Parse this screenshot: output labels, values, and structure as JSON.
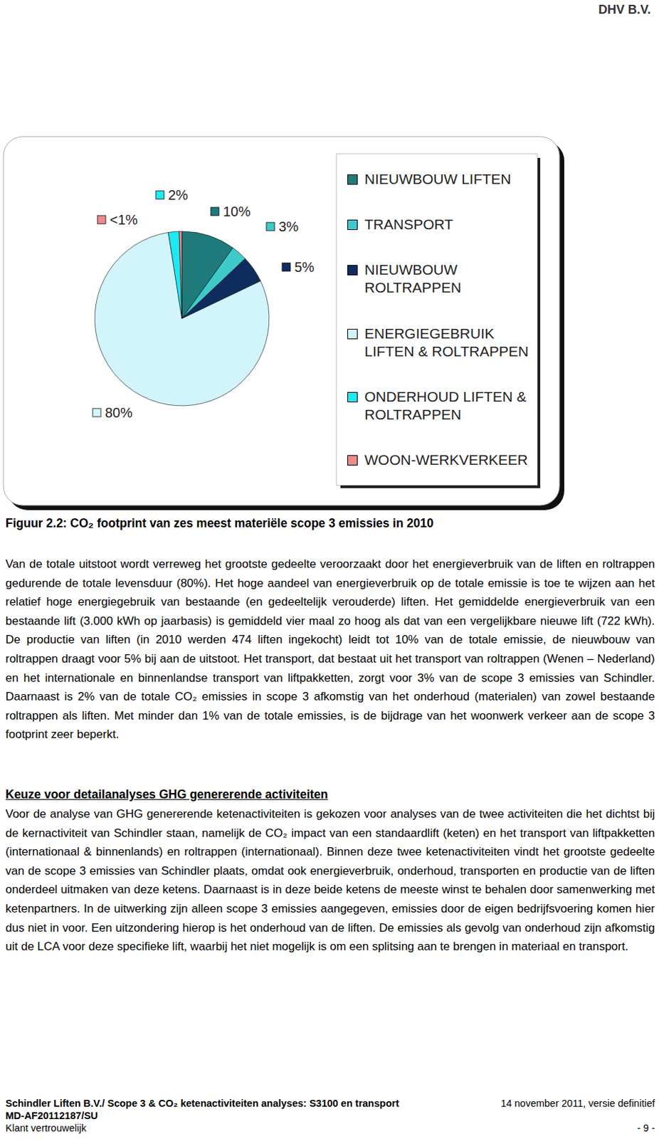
{
  "header": "DHV B.V.",
  "chart_data": {
    "type": "pie",
    "categories": [
      "NIEUWBOUW LIFTEN",
      "TRANSPORT",
      "NIEUWBOUW ROLTRAPPEN",
      "ENERGIEGEBRUIK LIFTEN & ROLTRAPPEN",
      "ONDERHOUD LIFTEN & ROLTRAPPEN",
      "WOON-WERKVERKEER"
    ],
    "values": [
      10,
      3,
      5,
      80,
      2,
      0.5
    ],
    "value_labels": [
      "10%",
      "3%",
      "5%",
      "80%",
      "2%",
      "<1%"
    ],
    "colors": [
      "#1f7b7b",
      "#3fcaca",
      "#0e2d5e",
      "#d2f4fb",
      "#1ee9f2",
      "#ec8b8b"
    ],
    "data_labels": true,
    "legend": "right"
  },
  "caption": "Figuur 2.2: CO₂ footprint van zes meest materiële scope 3 emissies in 2010",
  "paragraph_1": "Van de totale uitstoot wordt verreweg het grootste gedeelte veroorzaakt door het energieverbruik van de liften en roltrappen gedurende de totale levensduur (80%). Het hoge aandeel van energieverbruik op de totale emissie is toe te wijzen aan het relatief hoge energiegebruik van bestaande (en gedeeltelijk verouderde) liften. Het gemiddelde energieverbruik van een bestaande lift (3.000 kWh op jaarbasis) is gemiddeld vier maal zo hoog als dat van een vergelijkbare nieuwe lift (722 kWh). De productie van liften (in 2010 werden 474 liften ingekocht) leidt tot 10% van de totale emissie, de nieuwbouw van roltrappen draagt voor 5% bij aan de uitstoot. Het transport, dat bestaat uit het transport van roltrappen (Wenen – Nederland) en het internationale en binnenlandse transport van liftpakketten, zorgt voor 3% van de scope 3 emissies van Schindler. Daarnaast is 2% van de totale CO₂ emissies in scope 3 afkomstig van het onderhoud (materialen) van zowel bestaande roltrappen als liften. Met minder dan 1% van de totale emissies, is de bijdrage van het woonwerk verkeer aan de scope 3 footprint zeer beperkt.",
  "heading": "Keuze voor detailanalyses GHG genererende activiteiten",
  "paragraph_2": "Voor de analyse van GHG genererende ketenactiviteiten is gekozen voor analyses van de twee activiteiten die het dichtst bij de kernactiviteit van Schindler staan, namelijk de CO₂ impact van een standaardlift (keten) en het transport van liftpakketten (internationaal & binnenlands) en roltrappen (internationaal). Binnen deze twee ketenactiviteiten vindt het grootste gedeelte van de scope 3 emissies van Schindler plaats, omdat ook energieverbruik, onderhoud, transporten en productie van de liften onderdeel uitmaken van deze ketens. Daarnaast is in deze beide ketens de meeste winst te behalen door samenwerking met ketenpartners. In de uitwerking zijn alleen scope 3 emissies aangegeven, emissies door de eigen bedrijfsvoering komen hier dus niet in voor. Een uitzondering hierop is het onderhoud van de liften. De emissies als gevolg van onderhoud zijn afkomstig uit de LCA voor deze specifieke lift, waarbij het niet mogelijk is om een splitsing aan te brengen in materiaal en transport.",
  "footer": {
    "rows": [
      [
        "Schindler Liften B.V./ Scope 3 & CO₂ ketenactiviteiten analyses: S3100 en transport",
        "14 november 2011, versie definitief"
      ],
      [
        "MD-AF20112187/SU"
      ],
      [
        "Klant vertrouwelijk",
        "- 9 -"
      ]
    ]
  }
}
